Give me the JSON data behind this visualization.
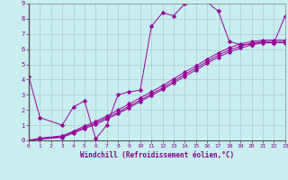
{
  "xlabel": "Windchill (Refroidissement éolien,°C)",
  "bg_color": "#c8eef0",
  "grid_color": "#aacccc",
  "line_color": "#990099",
  "xlim": [
    0,
    23
  ],
  "ylim": [
    0,
    9
  ],
  "xticks": [
    0,
    1,
    2,
    3,
    4,
    5,
    6,
    7,
    8,
    9,
    10,
    11,
    12,
    13,
    14,
    15,
    16,
    17,
    18,
    19,
    20,
    21,
    22,
    23
  ],
  "yticks": [
    0,
    1,
    2,
    3,
    4,
    5,
    6,
    7,
    8,
    9
  ],
  "series1_x": [
    0,
    1,
    3,
    4,
    5,
    6,
    7,
    8,
    9,
    10,
    11,
    12,
    13,
    14,
    15,
    16,
    17,
    18,
    19,
    20,
    21,
    22,
    23
  ],
  "series1_y": [
    4.2,
    1.5,
    1.0,
    2.2,
    2.6,
    0.1,
    1.0,
    3.0,
    3.2,
    3.3,
    7.5,
    8.4,
    8.2,
    9.0,
    9.1,
    9.1,
    8.5,
    6.5,
    6.3,
    6.3,
    6.5,
    6.4,
    8.2
  ],
  "series2_x": [
    0,
    1,
    3,
    4,
    5,
    6,
    7,
    8,
    9,
    10,
    11,
    12,
    13,
    14,
    15,
    16,
    17,
    18,
    19,
    20,
    21,
    22,
    23
  ],
  "series2_y": [
    0.0,
    0.15,
    0.3,
    0.6,
    0.95,
    1.25,
    1.6,
    2.0,
    2.4,
    2.8,
    3.2,
    3.6,
    4.05,
    4.5,
    4.9,
    5.35,
    5.75,
    6.1,
    6.35,
    6.5,
    6.6,
    6.6,
    6.6
  ],
  "series3_x": [
    0,
    1,
    3,
    4,
    5,
    6,
    7,
    8,
    9,
    10,
    11,
    12,
    13,
    14,
    15,
    16,
    17,
    18,
    19,
    20,
    21,
    22,
    23
  ],
  "series3_y": [
    0.0,
    0.1,
    0.25,
    0.55,
    0.85,
    1.15,
    1.5,
    1.85,
    2.25,
    2.65,
    3.05,
    3.45,
    3.9,
    4.35,
    4.75,
    5.2,
    5.6,
    5.95,
    6.2,
    6.4,
    6.5,
    6.5,
    6.5
  ],
  "series4_x": [
    0,
    1,
    3,
    4,
    5,
    6,
    7,
    8,
    9,
    10,
    11,
    12,
    13,
    14,
    15,
    16,
    17,
    18,
    19,
    20,
    21,
    22,
    23
  ],
  "series4_y": [
    0.0,
    0.08,
    0.2,
    0.48,
    0.78,
    1.05,
    1.4,
    1.75,
    2.15,
    2.55,
    2.95,
    3.35,
    3.78,
    4.22,
    4.62,
    5.07,
    5.47,
    5.82,
    6.07,
    6.28,
    6.42,
    6.42,
    6.42
  ]
}
